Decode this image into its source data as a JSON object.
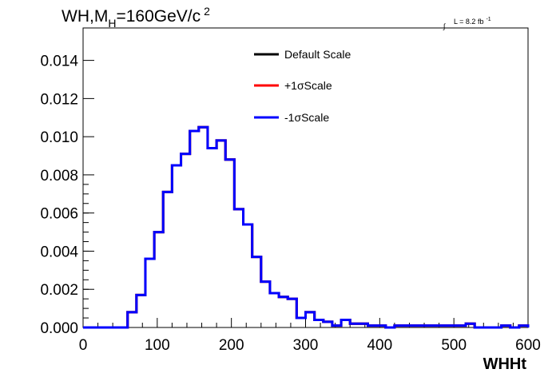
{
  "chart_data": {
    "type": "line",
    "title_main": "WH,M",
    "title_sub": "H",
    "title_rest": "=160GeV/c",
    "title_sup": "2",
    "lumi_integral": "∫",
    "lumi_text": "L = 8.2 fb",
    "lumi_sup": "-1",
    "xlabel": "WHHt",
    "xlim": [
      0,
      600
    ],
    "ylim": [
      0,
      0.0157
    ],
    "x_ticks": [
      "0",
      "100",
      "200",
      "300",
      "400",
      "500",
      "600"
    ],
    "x_tick_values": [
      0,
      100,
      200,
      300,
      400,
      500,
      600
    ],
    "y_ticks": [
      "0.000",
      "0.002",
      "0.004",
      "0.006",
      "0.008",
      "0.010",
      "0.012",
      "0.014"
    ],
    "y_tick_values": [
      0,
      0.002,
      0.004,
      0.006,
      0.008,
      0.01,
      0.012,
      0.014
    ],
    "bin_width": 12,
    "bin_edges_start": 0,
    "legend_position": "top-center",
    "series": [
      {
        "name": "Default Scale",
        "color": "#000000"
      },
      {
        "name": "+1σScale",
        "color": "#ff0000"
      },
      {
        "name": "-1σScale",
        "color": "#0000ff"
      }
    ],
    "values": [
      0,
      0,
      0,
      0,
      0,
      0.0008,
      0.0017,
      0.0036,
      0.005,
      0.0071,
      0.0085,
      0.0091,
      0.0103,
      0.0105,
      0.0094,
      0.0098,
      0.0088,
      0.0062,
      0.0054,
      0.0037,
      0.0024,
      0.0018,
      0.0016,
      0.0015,
      0.0005,
      0.0008,
      0.0004,
      0.0003,
      0.0001,
      0.0004,
      0.0002,
      0.0002,
      0.0001,
      0.0001,
      0.0,
      0.0001,
      0.0001,
      0.0001,
      0.0001,
      0.0001,
      0.0001,
      0.0001,
      0.0001,
      0.0002,
      0.0,
      0.0,
      0.0,
      0.0001,
      0.0,
      0.0001
    ]
  }
}
